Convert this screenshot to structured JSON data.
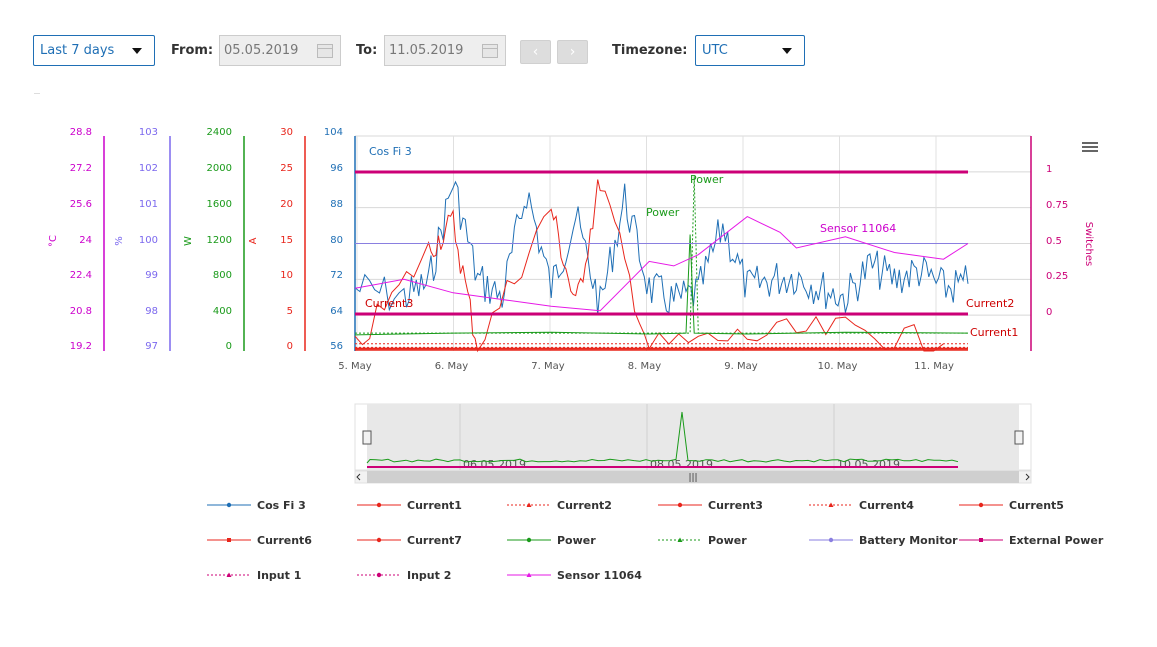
{
  "toolbar": {
    "range_select": "Last 7 days",
    "from_label": "From:",
    "from_value": "05.05.2019",
    "to_label": "To:",
    "to_value": "11.05.2019",
    "prev_label": "‹",
    "next_label": "›",
    "timezone_label": "Timezone:",
    "timezone_value": "UTC"
  },
  "chart_data": {
    "type": "line",
    "x_axis": {
      "ticks": [
        "5. May",
        "6. May",
        "7. May",
        "8. May",
        "9. May",
        "10. May",
        "11. May"
      ],
      "range": [
        "2019-05-05",
        "2019-05-11 06:00"
      ]
    },
    "grid": true,
    "y_axes": [
      {
        "id": "temp",
        "title": "°C",
        "color": "#cc00cc",
        "ticks": [
          "28.8",
          "27.2",
          "25.6",
          "24",
          "22.4",
          "20.8",
          "19.2"
        ]
      },
      {
        "id": "percent",
        "title": "%",
        "color": "#7b68ee",
        "ticks": [
          "103",
          "102",
          "101",
          "100",
          "99",
          "98",
          "97"
        ]
      },
      {
        "id": "watt",
        "title": "W",
        "color": "#1a9a1a",
        "ticks": [
          "2400",
          "2000",
          "1600",
          "1200",
          "800",
          "400",
          "0"
        ]
      },
      {
        "id": "amp",
        "title": "A",
        "color": "#e8261c",
        "ticks": [
          "30",
          "25",
          "20",
          "15",
          "10",
          "5",
          "0"
        ]
      },
      {
        "id": "cosfi",
        "title": "",
        "color": "#1f6fb5",
        "ticks": [
          "104",
          "96",
          "88",
          "80",
          "72",
          "64",
          "56"
        ]
      },
      {
        "id": "switches",
        "title": "Switches",
        "color": "#cc0077",
        "ticks": [
          "1",
          "0.75",
          "0.5",
          "0.25",
          "0"
        ]
      }
    ],
    "series": [
      {
        "name": "Cos Fi 3",
        "axis": "cosfi",
        "color": "#1f6fb5",
        "x": [
          "2019-05-05",
          "2019-05-05 12:00",
          "2019-05-05 18:00",
          "2019-05-06",
          "2019-05-06 06:00",
          "2019-05-06 12:00",
          "2019-05-06 18:00",
          "2019-05-07",
          "2019-05-07 06:00",
          "2019-05-07 12:00",
          "2019-05-07 18:00",
          "2019-05-08",
          "2019-05-08 06:00",
          "2019-05-08 12:00",
          "2019-05-08 18:00",
          "2019-05-09",
          "2019-05-09 06:00",
          "2019-05-09 12:00",
          "2019-05-09 18:00",
          "2019-05-10",
          "2019-05-10 06:00",
          "2019-05-10 12:00",
          "2019-05-10 18:00",
          "2019-05-11",
          "2019-05-11 06:00"
        ],
        "values": [
          70,
          68,
          71,
          94,
          72,
          68,
          92,
          70,
          86,
          66,
          90,
          70,
          67,
          69,
          84,
          70,
          72,
          73,
          70,
          68,
          75,
          72,
          74,
          70,
          71
        ]
      },
      {
        "name": "Current1",
        "axis": "amp",
        "color": "#e8261c",
        "x": [
          "2019-05-05",
          "2019-05-11 06:00"
        ],
        "values": [
          0.3,
          0.3
        ]
      },
      {
        "name": "Current2",
        "axis": "amp",
        "color": "#e8261c",
        "x": [
          "2019-05-05",
          "2019-05-11 06:00"
        ],
        "values": [
          0.5,
          0.5
        ]
      },
      {
        "name": "Current3",
        "axis": "amp",
        "color": "#e8261c",
        "x": [
          "2019-05-05",
          "2019-05-05 18:00",
          "2019-05-06",
          "2019-05-06 06:00",
          "2019-05-07",
          "2019-05-07 06:00",
          "2019-05-07 12:00",
          "2019-05-08",
          "2019-05-09",
          "2019-05-10",
          "2019-05-11"
        ],
        "values": [
          0.5,
          14,
          18,
          0.5,
          20,
          6,
          24,
          0.5,
          2,
          3,
          1
        ]
      },
      {
        "name": "Current4",
        "axis": "amp",
        "color": "#e8261c",
        "x": [
          "2019-05-05",
          "2019-05-11 06:00"
        ],
        "values": [
          1,
          1
        ]
      },
      {
        "name": "Current5",
        "axis": "amp",
        "color": "#e8261c",
        "x": [
          "2019-05-05",
          "2019-05-11 06:00"
        ],
        "values": [
          0.4,
          0.4
        ]
      },
      {
        "name": "Current6",
        "axis": "amp",
        "color": "#e8261c",
        "x": [
          "2019-05-05",
          "2019-05-11 06:00"
        ],
        "values": [
          0.2,
          0.2
        ]
      },
      {
        "name": "Current7",
        "axis": "amp",
        "color": "#e8261c",
        "x": [
          "2019-05-05",
          "2019-05-11 06:00"
        ],
        "values": [
          0.1,
          0.1
        ]
      },
      {
        "name": "Power",
        "axis": "watt",
        "color": "#1a9a1a",
        "x": [
          "2019-05-05",
          "2019-05-06",
          "2019-05-07",
          "2019-05-08",
          "2019-05-08 09:00",
          "2019-05-08 10:00",
          "2019-05-08 11:00",
          "2019-05-09",
          "2019-05-10",
          "2019-05-11 06:00"
        ],
        "values": [
          180,
          200,
          210,
          190,
          200,
          1300,
          200,
          190,
          210,
          200
        ]
      },
      {
        "name": "Power",
        "axis": "watt",
        "color": "#1a9a1a",
        "x": [
          "2019-05-05",
          "2019-05-08 10:00",
          "2019-05-08 11:00",
          "2019-05-08 12:00",
          "2019-05-11 06:00"
        ],
        "values": [
          200,
          200,
          1950,
          200,
          200
        ]
      },
      {
        "name": "Battery Monitor",
        "axis": "percent",
        "color": "#8a7fe0",
        "x": [
          "2019-05-05",
          "2019-05-11 06:00"
        ],
        "values": [
          100,
          100
        ]
      },
      {
        "name": "External Power",
        "axis": "switches",
        "color": "#cc0077",
        "x": [
          "2019-05-05",
          "2019-05-11 06:00"
        ],
        "values": [
          1,
          1
        ]
      },
      {
        "name": "Input 1",
        "axis": "switches",
        "color": "#cc0077",
        "x": [
          "2019-05-05",
          "2019-05-11 06:00"
        ],
        "values": [
          0,
          0
        ]
      },
      {
        "name": "Input 2",
        "axis": "switches",
        "color": "#cc0077",
        "x": [
          "2019-05-05",
          "2019-05-11 06:00"
        ],
        "values": [
          0,
          0
        ]
      },
      {
        "name": "Sensor 11064",
        "axis": "temp",
        "color": "#e619e6",
        "x": [
          "2019-05-05",
          "2019-05-05 12:00",
          "2019-05-06",
          "2019-05-06 12:00",
          "2019-05-07",
          "2019-05-07 12:00",
          "2019-05-08",
          "2019-05-08 06:00",
          "2019-05-08 12:00",
          "2019-05-09",
          "2019-05-09 08:00",
          "2019-05-09 12:00",
          "2019-05-10",
          "2019-05-10 12:00",
          "2019-05-11",
          "2019-05-11 06:00"
        ],
        "values": [
          22,
          22.4,
          21.8,
          21.5,
          21.2,
          21.0,
          23.2,
          23.0,
          23.5,
          25.2,
          24.5,
          23.8,
          24.3,
          23.6,
          23.3,
          24.0
        ]
      }
    ],
    "annotations": [
      "Cos Fi 3",
      "Power",
      "Power",
      "Sensor 11064",
      "Current3",
      "Current2",
      "Current1"
    ],
    "navigator": {
      "labels": [
        "06.05.2019",
        "08.05.2019",
        "10.05.2019"
      ],
      "scroll_grip": "|||"
    }
  }
}
